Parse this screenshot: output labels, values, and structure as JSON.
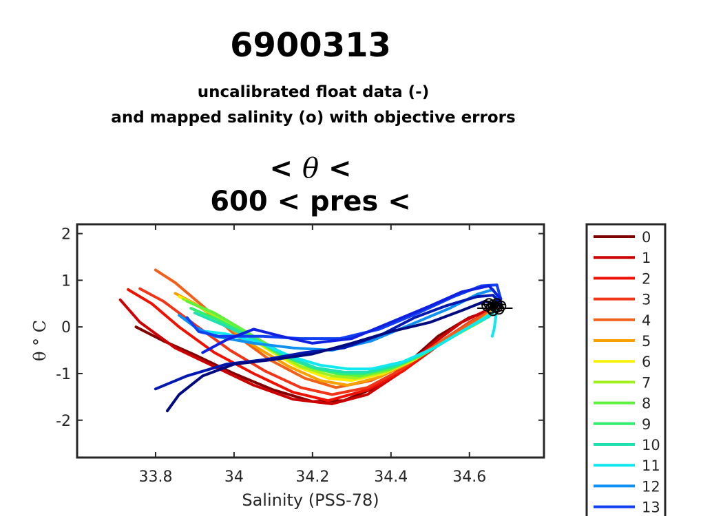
{
  "figure": {
    "title": "6900313",
    "subtitle_line1": "uncalibrated float data (-)",
    "subtitle_line2": "and mapped salinity (o) with objective errors",
    "chart_title_line1_left": "<",
    "chart_title_line1_symbol": "θ",
    "chart_title_line1_right": "<",
    "chart_title_line2": "600 < pres <"
  },
  "chart_data": {
    "type": "line",
    "xlabel": "Salinity (PSS-78)",
    "ylabel": "θ ° C",
    "xlim": [
      33.6,
      34.79
    ],
    "ylim": [
      -2.8,
      2.2
    ],
    "xticks": [
      33.8,
      34,
      34.2,
      34.4,
      34.6
    ],
    "xtick_labels": [
      "33.8",
      "34",
      "34.2",
      "34.4",
      "34.6"
    ],
    "yticks": [
      2,
      1,
      0,
      -1,
      -2
    ],
    "ytick_labels": [
      "2",
      "1",
      "0",
      "-1",
      "-2"
    ],
    "grid": false,
    "legend_position": "outside-right",
    "series": [
      {
        "name": "0",
        "color": "#800000",
        "points": [
          [
            33.75,
            0.0
          ],
          [
            33.82,
            -0.3
          ],
          [
            33.9,
            -0.6
          ],
          [
            34.0,
            -1.0
          ],
          [
            34.1,
            -1.35
          ],
          [
            34.2,
            -1.6
          ],
          [
            34.28,
            -1.58
          ],
          [
            34.36,
            -1.3
          ],
          [
            34.44,
            -0.8
          ],
          [
            34.52,
            -0.2
          ],
          [
            34.6,
            0.2
          ],
          [
            34.67,
            0.4
          ]
        ]
      },
      {
        "name": "1",
        "color": "#cc0000",
        "points": [
          [
            33.71,
            0.58
          ],
          [
            33.76,
            0.1
          ],
          [
            33.85,
            -0.45
          ],
          [
            33.95,
            -0.85
          ],
          [
            34.05,
            -1.25
          ],
          [
            34.15,
            -1.55
          ],
          [
            34.25,
            -1.65
          ],
          [
            34.34,
            -1.45
          ],
          [
            34.42,
            -1.0
          ],
          [
            34.5,
            -0.4
          ],
          [
            34.58,
            0.1
          ],
          [
            34.66,
            0.42
          ]
        ]
      },
      {
        "name": "2",
        "color": "#ee1100",
        "points": [
          [
            33.73,
            0.8
          ],
          [
            33.79,
            0.5
          ],
          [
            33.86,
            0.0
          ],
          [
            33.95,
            -0.55
          ],
          [
            34.05,
            -1.0
          ],
          [
            34.15,
            -1.4
          ],
          [
            34.24,
            -1.58
          ],
          [
            34.34,
            -1.35
          ],
          [
            34.43,
            -0.95
          ],
          [
            34.52,
            -0.4
          ],
          [
            34.6,
            0.05
          ],
          [
            34.67,
            0.42
          ]
        ]
      },
      {
        "name": "3",
        "color": "#f03518",
        "points": [
          [
            33.76,
            0.82
          ],
          [
            33.82,
            0.55
          ],
          [
            33.9,
            0.05
          ],
          [
            33.99,
            -0.5
          ],
          [
            34.08,
            -0.95
          ],
          [
            34.17,
            -1.3
          ],
          [
            34.25,
            -1.45
          ],
          [
            34.34,
            -1.3
          ],
          [
            34.43,
            -0.9
          ],
          [
            34.52,
            -0.35
          ],
          [
            34.6,
            0.1
          ],
          [
            34.67,
            0.42
          ]
        ]
      },
      {
        "name": "4",
        "color": "#f06018",
        "points": [
          [
            33.8,
            1.22
          ],
          [
            33.85,
            0.95
          ],
          [
            33.92,
            0.45
          ],
          [
            34.0,
            -0.15
          ],
          [
            34.09,
            -0.7
          ],
          [
            34.18,
            -1.1
          ],
          [
            34.26,
            -1.3
          ],
          [
            34.35,
            -1.15
          ],
          [
            34.44,
            -0.8
          ],
          [
            34.53,
            -0.3
          ],
          [
            34.61,
            0.12
          ],
          [
            34.67,
            0.42
          ]
        ]
      },
      {
        "name": "5",
        "color": "#f8a000",
        "points": [
          [
            33.85,
            0.72
          ],
          [
            33.9,
            0.5
          ],
          [
            33.97,
            0.1
          ],
          [
            34.05,
            -0.4
          ],
          [
            34.14,
            -0.85
          ],
          [
            34.22,
            -1.15
          ],
          [
            34.29,
            -1.25
          ],
          [
            34.37,
            -1.08
          ],
          [
            34.45,
            -0.75
          ],
          [
            34.54,
            -0.3
          ],
          [
            34.62,
            0.1
          ],
          [
            34.67,
            0.4
          ]
        ]
      },
      {
        "name": "6",
        "color": "#f8f000",
        "points": [
          [
            33.86,
            0.65
          ],
          [
            33.92,
            0.4
          ],
          [
            34.0,
            0.0
          ],
          [
            34.08,
            -0.45
          ],
          [
            34.16,
            -0.85
          ],
          [
            34.24,
            -1.1
          ],
          [
            34.3,
            -1.15
          ],
          [
            34.38,
            -1.0
          ],
          [
            34.46,
            -0.7
          ],
          [
            34.55,
            -0.25
          ],
          [
            34.63,
            0.12
          ],
          [
            34.67,
            0.38
          ]
        ]
      },
      {
        "name": "7",
        "color": "#a0f020",
        "points": [
          [
            33.87,
            0.6
          ],
          [
            33.93,
            0.35
          ],
          [
            34.01,
            -0.05
          ],
          [
            34.09,
            -0.48
          ],
          [
            34.17,
            -0.85
          ],
          [
            34.25,
            -1.05
          ],
          [
            34.31,
            -1.1
          ],
          [
            34.39,
            -0.95
          ],
          [
            34.47,
            -0.65
          ],
          [
            34.56,
            -0.2
          ],
          [
            34.63,
            0.15
          ],
          [
            34.67,
            0.38
          ]
        ]
      },
      {
        "name": "8",
        "color": "#60f040",
        "points": [
          [
            33.88,
            0.55
          ],
          [
            33.95,
            0.3
          ],
          [
            34.03,
            -0.1
          ],
          [
            34.11,
            -0.5
          ],
          [
            34.19,
            -0.85
          ],
          [
            34.26,
            -1.0
          ],
          [
            34.32,
            -1.05
          ],
          [
            34.4,
            -0.9
          ],
          [
            34.48,
            -0.6
          ],
          [
            34.57,
            -0.15
          ],
          [
            34.64,
            0.18
          ],
          [
            34.67,
            0.38
          ]
        ]
      },
      {
        "name": "9",
        "color": "#30ee70",
        "points": [
          [
            33.89,
            0.4
          ],
          [
            33.96,
            0.15
          ],
          [
            34.04,
            -0.2
          ],
          [
            34.12,
            -0.6
          ],
          [
            34.2,
            -0.88
          ],
          [
            34.27,
            -1.0
          ],
          [
            34.33,
            -1.0
          ],
          [
            34.41,
            -0.85
          ],
          [
            34.49,
            -0.55
          ],
          [
            34.57,
            -0.15
          ],
          [
            34.64,
            0.2
          ],
          [
            34.67,
            0.38
          ]
        ]
      },
      {
        "name": "10",
        "color": "#20e0b0",
        "points": [
          [
            33.9,
            0.3
          ],
          [
            33.97,
            0.05
          ],
          [
            34.06,
            -0.3
          ],
          [
            34.14,
            -0.65
          ],
          [
            34.21,
            -0.88
          ],
          [
            34.28,
            -0.97
          ],
          [
            34.34,
            -0.97
          ],
          [
            34.42,
            -0.8
          ],
          [
            34.5,
            -0.5
          ],
          [
            34.58,
            -0.1
          ],
          [
            34.65,
            0.22
          ],
          [
            34.67,
            0.38
          ]
        ]
      },
      {
        "name": "11",
        "color": "#10e8f0",
        "points": [
          [
            33.93,
            -0.1
          ],
          [
            33.98,
            -0.15
          ],
          [
            34.07,
            -0.35
          ],
          [
            34.15,
            -0.65
          ],
          [
            34.22,
            -0.82
          ],
          [
            34.29,
            -0.9
          ],
          [
            34.35,
            -0.9
          ],
          [
            34.43,
            -0.75
          ],
          [
            34.51,
            -0.45
          ],
          [
            34.59,
            -0.05
          ],
          [
            34.65,
            0.25
          ],
          [
            34.67,
            0.38
          ],
          [
            34.663,
            -0.05
          ],
          [
            34.658,
            -0.2
          ]
        ]
      },
      {
        "name": "12",
        "color": "#1090f0",
        "points": [
          [
            33.86,
            0.25
          ],
          [
            33.9,
            0.0
          ],
          [
            33.95,
            -0.2
          ],
          [
            34.05,
            -0.35
          ],
          [
            34.15,
            -0.45
          ],
          [
            34.25,
            -0.5
          ],
          [
            34.35,
            -0.3
          ],
          [
            34.45,
            0.05
          ],
          [
            34.55,
            0.4
          ],
          [
            34.62,
            0.7
          ],
          [
            34.66,
            0.8
          ],
          [
            34.68,
            0.55
          ]
        ]
      },
      {
        "name": "13",
        "color": "#1040f0",
        "points": [
          [
            33.88,
            0.2
          ],
          [
            33.91,
            -0.1
          ],
          [
            33.96,
            -0.2
          ],
          [
            34.07,
            -0.2
          ],
          [
            34.17,
            -0.25
          ],
          [
            34.27,
            -0.25
          ],
          [
            34.37,
            -0.05
          ],
          [
            34.47,
            0.3
          ],
          [
            34.56,
            0.65
          ],
          [
            34.63,
            0.88
          ],
          [
            34.67,
            0.9
          ],
          [
            34.68,
            0.6
          ]
        ]
      },
      {
        "name": "",
        "color": "#1020e0",
        "points": [
          [
            33.92,
            -0.55
          ],
          [
            33.98,
            -0.28
          ],
          [
            34.05,
            -0.05
          ],
          [
            34.12,
            -0.2
          ],
          [
            34.2,
            -0.35
          ],
          [
            34.3,
            -0.25
          ],
          [
            34.4,
            0.1
          ],
          [
            34.5,
            0.45
          ],
          [
            34.58,
            0.75
          ],
          [
            34.65,
            0.88
          ],
          [
            34.68,
            0.6
          ]
        ]
      },
      {
        "name": "",
        "color": "#0018b0",
        "points": [
          [
            33.8,
            -1.33
          ],
          [
            33.88,
            -1.05
          ],
          [
            33.98,
            -0.8
          ],
          [
            34.08,
            -0.7
          ],
          [
            34.18,
            -0.55
          ],
          [
            34.28,
            -0.45
          ],
          [
            34.38,
            -0.15
          ],
          [
            34.46,
            0.2
          ],
          [
            34.54,
            0.45
          ],
          [
            34.62,
            0.65
          ],
          [
            34.66,
            0.68
          ],
          [
            34.68,
            0.5
          ]
        ]
      },
      {
        "name": "",
        "color": "#000a80",
        "points": [
          [
            33.83,
            -1.8
          ],
          [
            33.86,
            -1.45
          ],
          [
            33.92,
            -1.05
          ],
          [
            34.0,
            -0.8
          ],
          [
            34.1,
            -0.7
          ],
          [
            34.2,
            -0.58
          ],
          [
            34.3,
            -0.35
          ],
          [
            34.4,
            -0.1
          ],
          [
            34.5,
            0.1
          ],
          [
            34.58,
            0.35
          ],
          [
            34.64,
            0.55
          ],
          [
            34.68,
            0.45
          ]
        ]
      }
    ],
    "mapped_salinity_points": [
      {
        "x": 34.645,
        "y": 0.45
      },
      {
        "x": 34.65,
        "y": 0.5
      },
      {
        "x": 34.655,
        "y": 0.4
      },
      {
        "x": 34.66,
        "y": 0.47
      },
      {
        "x": 34.665,
        "y": 0.43
      },
      {
        "x": 34.67,
        "y": 0.5
      },
      {
        "x": 34.675,
        "y": 0.38
      },
      {
        "x": 34.68,
        "y": 0.45
      },
      {
        "x": 34.66,
        "y": 0.35
      },
      {
        "x": 34.67,
        "y": 0.42
      }
    ],
    "error_bars": [
      {
        "x": 34.66,
        "y": 0.48,
        "xerr": 0.03
      },
      {
        "x": 34.665,
        "y": 0.4,
        "xerr": 0.045
      }
    ]
  }
}
